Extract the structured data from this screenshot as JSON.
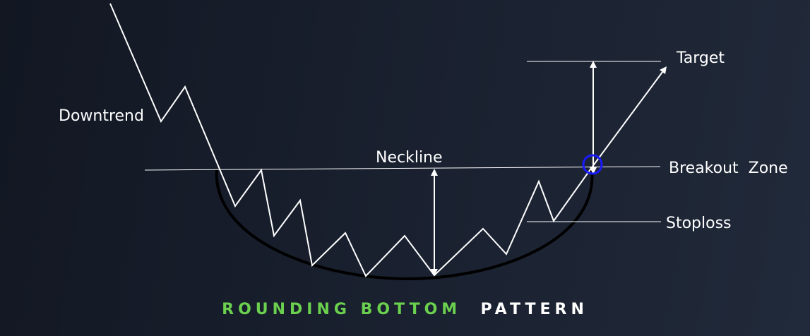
{
  "labels": {
    "downtrend": "Downtrend",
    "neckline": "Neckline",
    "target": "Target",
    "breakout_zone": "Breakout  Zone",
    "stoploss": "Stoploss"
  },
  "title": {
    "part1": "ROUNDING BOTTOM",
    "part2": "PATTERN"
  },
  "colors": {
    "line": "#ffffff",
    "bowl": "#000000",
    "breakout_marker": "#1a1aff",
    "title_accent": "#6ad04e",
    "title_plain": "#ffffff"
  }
}
